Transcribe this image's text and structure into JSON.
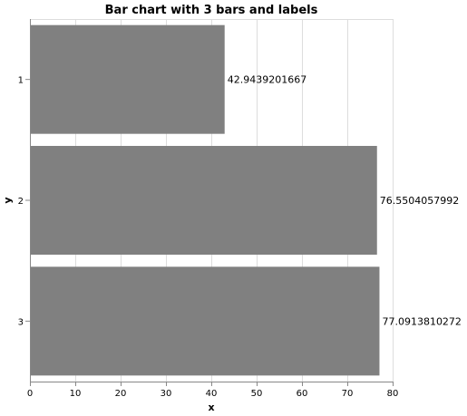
{
  "chart_data": {
    "type": "bar",
    "orientation": "horizontal",
    "title": "Bar chart with 3 bars and labels",
    "xlabel": "x",
    "ylabel": "y",
    "categories": [
      "1",
      "2",
      "3"
    ],
    "values": [
      42.9439201667,
      76.5504057992,
      77.0913810272
    ],
    "value_labels": [
      "42.9439201667",
      "76.5504057992",
      "77.0913810272"
    ],
    "xlim": [
      0,
      80
    ],
    "xticks": [
      0,
      10,
      20,
      30,
      40,
      50,
      60,
      70,
      80
    ],
    "grid": true,
    "legend": "none",
    "bar_color": "#808080"
  }
}
